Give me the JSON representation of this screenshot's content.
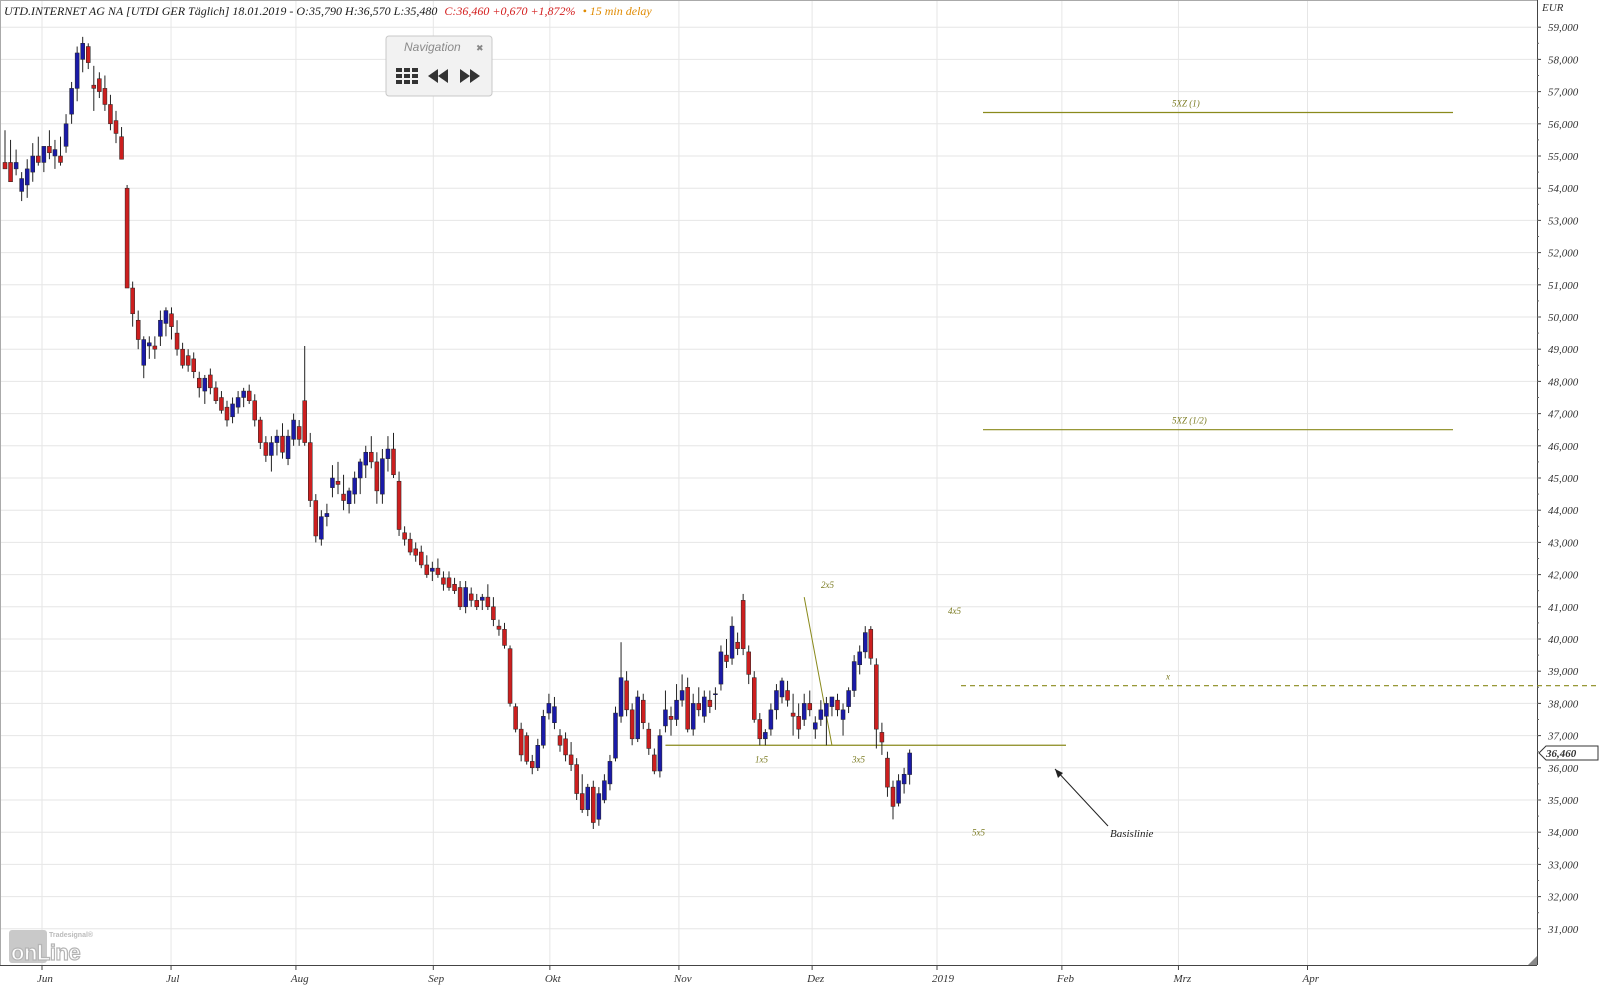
{
  "header": {
    "instrument": "UTD.INTERNET AG NA [UTDI GER Täglich] 18.01.2019 - O:35,790 H:36,570 L:35,480",
    "close_change": "C:36,460 +0,670 +1,872%",
    "delay": "• 15 min delay",
    "color_up": "#1a1aa8",
    "color_down": "#cc1f1f",
    "color_delay": "#e08a00"
  },
  "navigation": {
    "title": "Navigation",
    "close": "✖",
    "buttons": [
      "grid-icon",
      "rewind-icon",
      "fast-forward-icon"
    ]
  },
  "logo": {
    "small": "Tradesignal®",
    "main": "onLine"
  },
  "chart_data": {
    "type": "candlestick",
    "currency": "EUR",
    "y_axis": {
      "min": 30500,
      "max": 59800,
      "side": "right",
      "ticks": [
        "31,000",
        "32,000",
        "33,000",
        "34,000",
        "35,000",
        "36,000",
        "37,000",
        "38,000",
        "39,000",
        "40,000",
        "41,000",
        "42,000",
        "43,000",
        "44,000",
        "45,000",
        "46,000",
        "47,000",
        "48,000",
        "49,000",
        "50,000",
        "51,000",
        "52,000",
        "53,000",
        "54,000",
        "55,000",
        "56,000",
        "57,000",
        "58,000",
        "59,000"
      ]
    },
    "x_axis": {
      "labels": [
        "Jun",
        "Jul",
        "Aug",
        "Sep",
        "Okt",
        "Nov",
        "Dez",
        "2019",
        "Feb",
        "Mrz",
        "Apr"
      ]
    },
    "last_price_label": "36,460",
    "candles": [
      {
        "o": 54.8,
        "h": 55.8,
        "l": 54.6,
        "c": 54.6
      },
      {
        "o": 54.8,
        "h": 55.5,
        "l": 54.3,
        "c": 54.2
      },
      {
        "o": 54.6,
        "h": 55.2,
        "l": 54.4,
        "c": 54.8
      },
      {
        "o": 53.9,
        "h": 54.5,
        "l": 53.6,
        "c": 54.3
      },
      {
        "o": 54.1,
        "h": 54.9,
        "l": 53.7,
        "c": 54.6
      },
      {
        "o": 54.5,
        "h": 55.4,
        "l": 54.2,
        "c": 55.0
      },
      {
        "o": 55.0,
        "h": 55.6,
        "l": 54.7,
        "c": 54.8
      },
      {
        "o": 54.8,
        "h": 55.3,
        "l": 54.5,
        "c": 55.3
      },
      {
        "o": 55.3,
        "h": 55.8,
        "l": 54.9,
        "c": 55.1
      },
      {
        "o": 55.0,
        "h": 55.5,
        "l": 54.6,
        "c": 55.2
      },
      {
        "o": 55.0,
        "h": 55.6,
        "l": 54.7,
        "c": 54.8
      },
      {
        "o": 55.3,
        "h": 56.3,
        "l": 55.1,
        "c": 56.0
      },
      {
        "o": 56.3,
        "h": 57.3,
        "l": 56.0,
        "c": 57.1
      },
      {
        "o": 57.1,
        "h": 58.4,
        "l": 56.7,
        "c": 58.2
      },
      {
        "o": 58.0,
        "h": 58.7,
        "l": 57.6,
        "c": 58.5
      },
      {
        "o": 58.4,
        "h": 58.5,
        "l": 57.7,
        "c": 57.9
      },
      {
        "o": 57.2,
        "h": 57.8,
        "l": 56.4,
        "c": 57.1
      },
      {
        "o": 57.4,
        "h": 57.6,
        "l": 56.8,
        "c": 57.0
      },
      {
        "o": 57.1,
        "h": 57.5,
        "l": 56.4,
        "c": 56.6
      },
      {
        "o": 56.6,
        "h": 56.9,
        "l": 55.8,
        "c": 56.0
      },
      {
        "o": 56.1,
        "h": 56.4,
        "l": 55.4,
        "c": 55.7
      },
      {
        "o": 55.6,
        "h": 55.9,
        "l": 54.9,
        "c": 54.9
      },
      {
        "o": 54.0,
        "h": 54.1,
        "l": 50.9,
        "c": 50.9
      },
      {
        "o": 50.9,
        "h": 51.1,
        "l": 49.7,
        "c": 50.1
      },
      {
        "o": 49.9,
        "h": 50.2,
        "l": 49.0,
        "c": 49.3
      },
      {
        "o": 48.5,
        "h": 49.4,
        "l": 48.1,
        "c": 49.3
      },
      {
        "o": 49.1,
        "h": 49.4,
        "l": 48.7,
        "c": 49.2
      },
      {
        "o": 49.1,
        "h": 49.4,
        "l": 48.7,
        "c": 49.0
      },
      {
        "o": 49.4,
        "h": 50.2,
        "l": 49.1,
        "c": 49.9
      },
      {
        "o": 49.8,
        "h": 50.3,
        "l": 49.4,
        "c": 50.2
      },
      {
        "o": 50.1,
        "h": 50.3,
        "l": 49.3,
        "c": 49.7
      },
      {
        "o": 49.5,
        "h": 49.9,
        "l": 48.8,
        "c": 49.0
      },
      {
        "o": 49.0,
        "h": 49.2,
        "l": 48.4,
        "c": 48.5
      },
      {
        "o": 48.8,
        "h": 49.0,
        "l": 48.3,
        "c": 48.5
      },
      {
        "o": 48.7,
        "h": 48.9,
        "l": 48.1,
        "c": 48.3
      },
      {
        "o": 48.1,
        "h": 48.3,
        "l": 47.5,
        "c": 47.8
      },
      {
        "o": 47.7,
        "h": 48.2,
        "l": 47.3,
        "c": 48.1
      },
      {
        "o": 48.2,
        "h": 48.4,
        "l": 47.6,
        "c": 47.8
      },
      {
        "o": 47.8,
        "h": 48.0,
        "l": 47.3,
        "c": 47.4
      },
      {
        "o": 47.5,
        "h": 47.7,
        "l": 47.0,
        "c": 47.1
      },
      {
        "o": 47.2,
        "h": 47.4,
        "l": 46.6,
        "c": 46.8
      },
      {
        "o": 46.9,
        "h": 47.5,
        "l": 46.7,
        "c": 47.3
      },
      {
        "o": 47.2,
        "h": 47.7,
        "l": 47.0,
        "c": 47.5
      },
      {
        "o": 47.5,
        "h": 47.8,
        "l": 47.2,
        "c": 47.7
      },
      {
        "o": 47.7,
        "h": 47.9,
        "l": 47.3,
        "c": 47.4
      },
      {
        "o": 47.4,
        "h": 47.6,
        "l": 46.6,
        "c": 46.8
      },
      {
        "o": 46.8,
        "h": 46.9,
        "l": 45.9,
        "c": 46.1
      },
      {
        "o": 46.1,
        "h": 46.3,
        "l": 45.5,
        "c": 45.7
      },
      {
        "o": 45.7,
        "h": 46.3,
        "l": 45.2,
        "c": 46.1
      },
      {
        "o": 46.1,
        "h": 46.5,
        "l": 45.7,
        "c": 46.3
      },
      {
        "o": 46.3,
        "h": 46.7,
        "l": 45.6,
        "c": 45.8
      },
      {
        "o": 45.6,
        "h": 46.5,
        "l": 45.4,
        "c": 46.3
      },
      {
        "o": 46.2,
        "h": 47.0,
        "l": 46.0,
        "c": 46.8
      },
      {
        "o": 46.6,
        "h": 46.8,
        "l": 46.0,
        "c": 46.2
      },
      {
        "o": 47.4,
        "h": 49.1,
        "l": 46.0,
        "c": 46.1
      },
      {
        "o": 46.1,
        "h": 46.4,
        "l": 44.1,
        "c": 44.3
      },
      {
        "o": 44.3,
        "h": 44.5,
        "l": 43.0,
        "c": 43.2
      },
      {
        "o": 43.1,
        "h": 44.0,
        "l": 42.9,
        "c": 43.8
      },
      {
        "o": 43.8,
        "h": 44.2,
        "l": 43.5,
        "c": 43.9
      },
      {
        "o": 44.7,
        "h": 45.4,
        "l": 44.4,
        "c": 45.0
      },
      {
        "o": 44.9,
        "h": 45.5,
        "l": 44.5,
        "c": 44.8
      },
      {
        "o": 44.5,
        "h": 45.1,
        "l": 44.0,
        "c": 44.3
      },
      {
        "o": 44.2,
        "h": 44.7,
        "l": 43.9,
        "c": 44.6
      },
      {
        "o": 44.5,
        "h": 45.2,
        "l": 44.2,
        "c": 45.0
      },
      {
        "o": 45.0,
        "h": 45.6,
        "l": 44.5,
        "c": 45.5
      },
      {
        "o": 45.4,
        "h": 46.0,
        "l": 45.0,
        "c": 45.8
      },
      {
        "o": 45.8,
        "h": 46.3,
        "l": 45.3,
        "c": 45.5
      },
      {
        "o": 45.5,
        "h": 45.8,
        "l": 44.2,
        "c": 44.6
      },
      {
        "o": 44.5,
        "h": 45.9,
        "l": 44.2,
        "c": 45.6
      },
      {
        "o": 45.6,
        "h": 46.3,
        "l": 45.2,
        "c": 45.9
      },
      {
        "o": 45.9,
        "h": 46.4,
        "l": 45.0,
        "c": 45.1
      },
      {
        "o": 44.9,
        "h": 45.2,
        "l": 43.2,
        "c": 43.4
      },
      {
        "o": 43.3,
        "h": 43.5,
        "l": 42.9,
        "c": 43.1
      },
      {
        "o": 43.1,
        "h": 43.3,
        "l": 42.6,
        "c": 42.7
      },
      {
        "o": 42.8,
        "h": 43.0,
        "l": 42.4,
        "c": 42.6
      },
      {
        "o": 42.7,
        "h": 42.9,
        "l": 42.2,
        "c": 42.3
      },
      {
        "o": 42.3,
        "h": 42.6,
        "l": 41.9,
        "c": 42.0
      },
      {
        "o": 42.1,
        "h": 42.4,
        "l": 41.8,
        "c": 42.2
      },
      {
        "o": 42.2,
        "h": 42.5,
        "l": 41.9,
        "c": 42.0
      },
      {
        "o": 41.9,
        "h": 42.1,
        "l": 41.5,
        "c": 41.7
      },
      {
        "o": 41.9,
        "h": 42.1,
        "l": 41.5,
        "c": 41.6
      },
      {
        "o": 41.7,
        "h": 41.9,
        "l": 41.4,
        "c": 41.5
      },
      {
        "o": 41.6,
        "h": 41.8,
        "l": 40.9,
        "c": 41.0
      },
      {
        "o": 41.0,
        "h": 41.8,
        "l": 40.8,
        "c": 41.6
      },
      {
        "o": 41.4,
        "h": 41.6,
        "l": 41.0,
        "c": 41.2
      },
      {
        "o": 41.2,
        "h": 41.4,
        "l": 40.9,
        "c": 41.0
      },
      {
        "o": 41.2,
        "h": 41.4,
        "l": 40.9,
        "c": 41.3
      },
      {
        "o": 41.3,
        "h": 41.7,
        "l": 40.9,
        "c": 41.0
      },
      {
        "o": 41.0,
        "h": 41.3,
        "l": 40.4,
        "c": 40.6
      },
      {
        "o": 40.4,
        "h": 40.6,
        "l": 40.1,
        "c": 40.3
      },
      {
        "o": 40.3,
        "h": 40.5,
        "l": 39.7,
        "c": 39.8
      },
      {
        "o": 39.7,
        "h": 39.8,
        "l": 37.9,
        "c": 38.0
      },
      {
        "o": 37.9,
        "h": 38.0,
        "l": 37.1,
        "c": 37.2
      },
      {
        "o": 37.2,
        "h": 37.4,
        "l": 36.2,
        "c": 36.4
      },
      {
        "o": 37.0,
        "h": 37.1,
        "l": 36.1,
        "c": 36.2
      },
      {
        "o": 36.2,
        "h": 36.4,
        "l": 35.8,
        "c": 36.0
      },
      {
        "o": 36.0,
        "h": 36.9,
        "l": 35.9,
        "c": 36.7
      },
      {
        "o": 36.7,
        "h": 37.8,
        "l": 36.6,
        "c": 37.6
      },
      {
        "o": 37.7,
        "h": 38.3,
        "l": 37.5,
        "c": 38.0
      },
      {
        "o": 37.4,
        "h": 38.2,
        "l": 37.2,
        "c": 37.9
      },
      {
        "o": 37.0,
        "h": 37.2,
        "l": 36.5,
        "c": 36.7
      },
      {
        "o": 36.9,
        "h": 37.1,
        "l": 36.2,
        "c": 36.4
      },
      {
        "o": 36.4,
        "h": 36.8,
        "l": 35.9,
        "c": 36.1
      },
      {
        "o": 36.1,
        "h": 36.3,
        "l": 35.0,
        "c": 35.2
      },
      {
        "o": 35.2,
        "h": 35.8,
        "l": 34.6,
        "c": 34.7
      },
      {
        "o": 34.7,
        "h": 35.5,
        "l": 34.5,
        "c": 35.4
      },
      {
        "o": 35.4,
        "h": 35.6,
        "l": 34.1,
        "c": 34.3
      },
      {
        "o": 34.4,
        "h": 35.4,
        "l": 34.2,
        "c": 35.2
      },
      {
        "o": 35.0,
        "h": 35.8,
        "l": 34.9,
        "c": 35.6
      },
      {
        "o": 35.5,
        "h": 36.4,
        "l": 35.3,
        "c": 36.2
      },
      {
        "o": 36.3,
        "h": 37.9,
        "l": 36.2,
        "c": 37.7
      },
      {
        "o": 37.6,
        "h": 39.9,
        "l": 37.4,
        "c": 38.8
      },
      {
        "o": 38.7,
        "h": 39.0,
        "l": 37.6,
        "c": 37.8
      },
      {
        "o": 37.8,
        "h": 38.0,
        "l": 36.7,
        "c": 36.9
      },
      {
        "o": 36.9,
        "h": 38.4,
        "l": 36.8,
        "c": 38.2
      },
      {
        "o": 38.1,
        "h": 38.3,
        "l": 37.2,
        "c": 37.4
      },
      {
        "o": 37.2,
        "h": 37.4,
        "l": 36.4,
        "c": 36.6
      },
      {
        "o": 36.4,
        "h": 36.6,
        "l": 35.8,
        "c": 35.9
      },
      {
        "o": 35.9,
        "h": 37.2,
        "l": 35.7,
        "c": 37.0
      },
      {
        "o": 37.3,
        "h": 38.4,
        "l": 37.1,
        "c": 37.8
      },
      {
        "o": 37.6,
        "h": 37.9,
        "l": 37.0,
        "c": 37.5
      },
      {
        "o": 37.5,
        "h": 38.6,
        "l": 37.3,
        "c": 38.1
      },
      {
        "o": 38.1,
        "h": 38.9,
        "l": 37.9,
        "c": 38.4
      },
      {
        "o": 38.5,
        "h": 38.8,
        "l": 37.1,
        "c": 37.2
      },
      {
        "o": 37.2,
        "h": 38.3,
        "l": 37.0,
        "c": 38.0
      },
      {
        "o": 38.0,
        "h": 38.5,
        "l": 37.6,
        "c": 37.8
      },
      {
        "o": 37.6,
        "h": 38.4,
        "l": 37.4,
        "c": 38.2
      },
      {
        "o": 38.1,
        "h": 38.4,
        "l": 37.7,
        "c": 37.9
      },
      {
        "o": 38.3,
        "h": 38.5,
        "l": 37.8,
        "c": 38.3
      },
      {
        "o": 38.6,
        "h": 39.8,
        "l": 38.4,
        "c": 39.6
      },
      {
        "o": 39.5,
        "h": 40.0,
        "l": 39.1,
        "c": 39.3
      },
      {
        "o": 39.4,
        "h": 40.7,
        "l": 39.2,
        "c": 40.4
      },
      {
        "o": 39.9,
        "h": 40.2,
        "l": 39.5,
        "c": 39.7
      },
      {
        "o": 41.2,
        "h": 41.4,
        "l": 39.5,
        "c": 39.7
      },
      {
        "o": 39.6,
        "h": 39.8,
        "l": 38.6,
        "c": 38.9
      },
      {
        "o": 38.8,
        "h": 39.0,
        "l": 37.4,
        "c": 37.5
      },
      {
        "o": 37.5,
        "h": 37.7,
        "l": 36.7,
        "c": 36.9
      },
      {
        "o": 36.9,
        "h": 37.2,
        "l": 36.7,
        "c": 37.1
      },
      {
        "o": 37.2,
        "h": 38.0,
        "l": 37.0,
        "c": 37.8
      },
      {
        "o": 37.8,
        "h": 38.6,
        "l": 37.5,
        "c": 38.4
      },
      {
        "o": 38.2,
        "h": 38.8,
        "l": 38.0,
        "c": 38.7
      },
      {
        "o": 38.4,
        "h": 38.7,
        "l": 37.9,
        "c": 38.1
      },
      {
        "o": 37.7,
        "h": 38.3,
        "l": 37.0,
        "c": 37.6
      },
      {
        "o": 37.6,
        "h": 38.0,
        "l": 36.9,
        "c": 37.2
      },
      {
        "o": 37.5,
        "h": 38.3,
        "l": 37.3,
        "c": 38.0
      },
      {
        "o": 38.0,
        "h": 38.4,
        "l": 37.6,
        "c": 37.8
      },
      {
        "o": 37.2,
        "h": 37.6,
        "l": 36.9,
        "c": 37.4
      },
      {
        "o": 37.5,
        "h": 38.1,
        "l": 37.3,
        "c": 37.8
      },
      {
        "o": 37.6,
        "h": 38.2,
        "l": 36.7,
        "c": 38.0
      },
      {
        "o": 37.9,
        "h": 38.2,
        "l": 37.6,
        "c": 38.2
      },
      {
        "o": 38.1,
        "h": 38.3,
        "l": 37.6,
        "c": 37.8
      },
      {
        "o": 37.5,
        "h": 38.0,
        "l": 37.0,
        "c": 37.8
      },
      {
        "o": 37.9,
        "h": 38.5,
        "l": 37.7,
        "c": 38.4
      },
      {
        "o": 38.4,
        "h": 39.5,
        "l": 38.2,
        "c": 39.3
      },
      {
        "o": 39.2,
        "h": 39.8,
        "l": 38.9,
        "c": 39.6
      },
      {
        "o": 39.6,
        "h": 40.4,
        "l": 39.4,
        "c": 40.2
      },
      {
        "o": 40.3,
        "h": 40.4,
        "l": 39.2,
        "c": 39.4
      },
      {
        "o": 39.2,
        "h": 39.4,
        "l": 36.6,
        "c": 37.2
      },
      {
        "o": 37.1,
        "h": 37.4,
        "l": 36.4,
        "c": 36.8
      },
      {
        "o": 36.3,
        "h": 36.5,
        "l": 35.1,
        "c": 35.4
      },
      {
        "o": 35.4,
        "h": 35.6,
        "l": 34.4,
        "c": 34.8
      },
      {
        "o": 34.9,
        "h": 35.8,
        "l": 34.8,
        "c": 35.6
      },
      {
        "o": 35.5,
        "h": 36.0,
        "l": 35.2,
        "c": 35.8
      },
      {
        "o": 35.79,
        "h": 36.57,
        "l": 35.48,
        "c": 36.46
      }
    ],
    "x_dates": [
      "2018-06-01",
      "2018-07-02",
      "2018-08-01",
      "2018-09-03",
      "2018-10-01",
      "2018-11-01",
      "2018-12-03",
      "2019-01-02",
      "2019-02-01",
      "2019-03-01",
      "2019-04-01"
    ],
    "annotations": [
      {
        "label": "1x5",
        "value": 36.7
      },
      {
        "label": "2x5",
        "value": 41.3
      },
      {
        "label": "3x5",
        "value": 36.7
      },
      {
        "label": "4x5",
        "value": 40.4
      },
      {
        "label": "5x5",
        "value": 34.4
      },
      {
        "label": "x",
        "value": 38.55
      },
      {
        "label": "5XZ (1)",
        "value": 56.35
      },
      {
        "label": "5XZ (1/2)",
        "value": 46.5
      }
    ],
    "basislinie": {
      "label": "Basislinie",
      "value": 36.7
    },
    "projection_x": 38.55,
    "target_full": 56.35,
    "target_half": 46.5
  }
}
